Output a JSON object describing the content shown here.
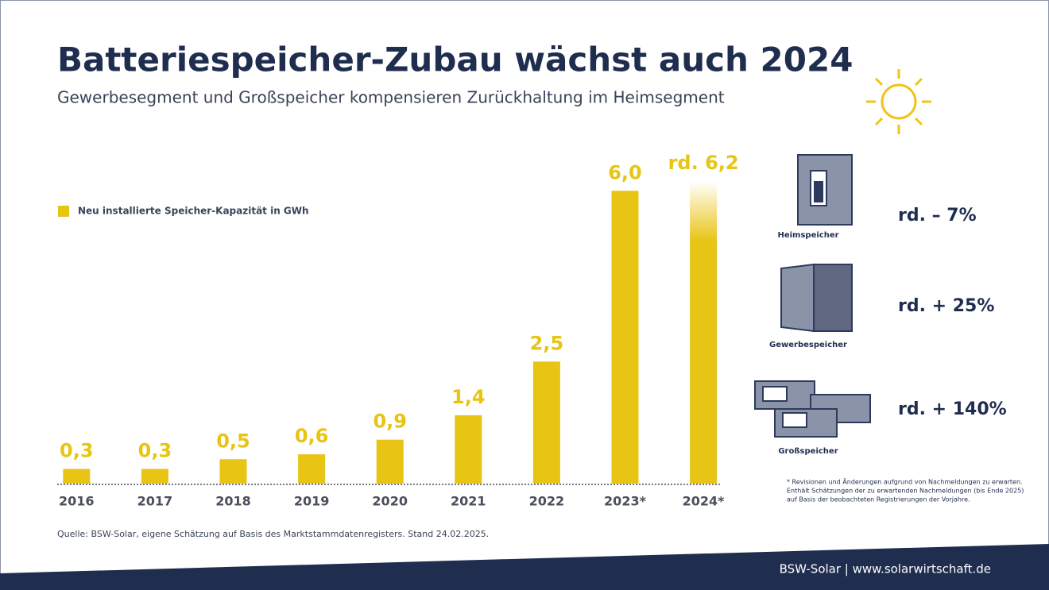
{
  "chart_data": {
    "type": "bar",
    "title": "Batteriespeicher-Zubau wächst auch 2024",
    "subtitle": "Gewerbesegment und Großspeicher kompensieren Zurückhaltung im Heimsegment",
    "categories": [
      "2016",
      "2017",
      "2018",
      "2019",
      "2020",
      "2021",
      "2022",
      "2023*",
      "2024*"
    ],
    "series": [
      {
        "name": "Neu installierte Speicher-Kapazität in GWh",
        "color": "#e8c414",
        "values": [
          0.3,
          0.3,
          0.5,
          0.6,
          0.9,
          1.4,
          2.5,
          6.0,
          6.2
        ],
        "value_labels": [
          "0,3",
          "0,3",
          "0,5",
          "0,6",
          "0,9",
          "1,4",
          "2,5",
          "6,0",
          "rd. 6,2"
        ]
      }
    ],
    "segments": [
      {
        "label": "Heimspeicher",
        "change": "rd. – 7%"
      },
      {
        "label": "Gewerbespeicher",
        "change": "rd. + 25%"
      },
      {
        "label": "Großspeicher",
        "change": "rd. + 140%"
      }
    ],
    "footnote": [
      "* Revisionen und Änderungen aufgrund von Nachmeldungen zu erwarten.",
      "Enthält Schätzungen der zu erwartenden Nachmeldungen (bis Ende 2025)",
      "auf Basis der beobachteten Registrierungen der Vorjahre."
    ],
    "source": "Quelle: BSW-Solar, eigene Schätzung auf Basis des Marktstammdatenregisters. Stand 24.02.2025.",
    "footer": "BSW-Solar | www.solarwirtschaft.de"
  }
}
